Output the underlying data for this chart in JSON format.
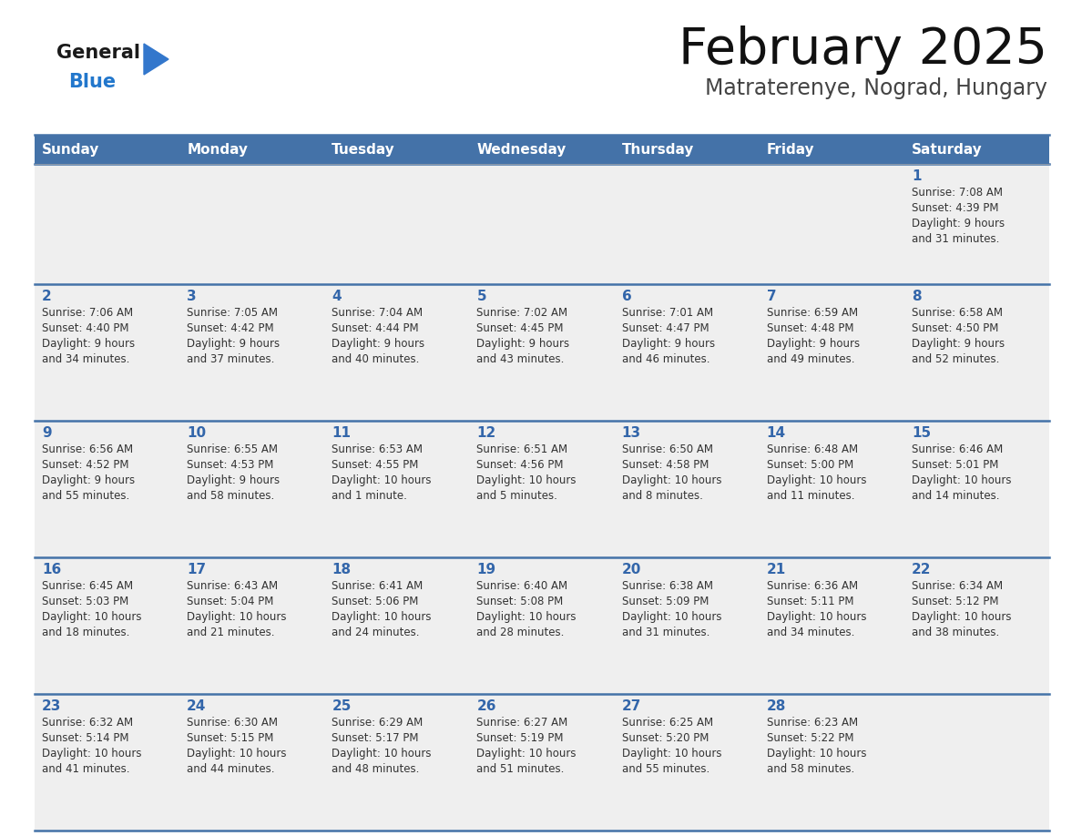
{
  "title": "February 2025",
  "subtitle": "Matraterenye, Nograd, Hungary",
  "days_of_week": [
    "Sunday",
    "Monday",
    "Tuesday",
    "Wednesday",
    "Thursday",
    "Friday",
    "Saturday"
  ],
  "header_bg": "#4472A8",
  "header_text": "#FFFFFF",
  "cell_bg_odd": "#EFEFEF",
  "cell_bg_even": "#FAFAFA",
  "day_number_color": "#3366AA",
  "info_text_color": "#333333",
  "border_color": "#4472A8",
  "logo_general_color": "#1a1a1a",
  "logo_blue_color": "#2277CC",
  "calendar_data": [
    [
      {
        "day": null,
        "info": ""
      },
      {
        "day": null,
        "info": ""
      },
      {
        "day": null,
        "info": ""
      },
      {
        "day": null,
        "info": ""
      },
      {
        "day": null,
        "info": ""
      },
      {
        "day": null,
        "info": ""
      },
      {
        "day": 1,
        "info": "Sunrise: 7:08 AM\nSunset: 4:39 PM\nDaylight: 9 hours\nand 31 minutes."
      }
    ],
    [
      {
        "day": 2,
        "info": "Sunrise: 7:06 AM\nSunset: 4:40 PM\nDaylight: 9 hours\nand 34 minutes."
      },
      {
        "day": 3,
        "info": "Sunrise: 7:05 AM\nSunset: 4:42 PM\nDaylight: 9 hours\nand 37 minutes."
      },
      {
        "day": 4,
        "info": "Sunrise: 7:04 AM\nSunset: 4:44 PM\nDaylight: 9 hours\nand 40 minutes."
      },
      {
        "day": 5,
        "info": "Sunrise: 7:02 AM\nSunset: 4:45 PM\nDaylight: 9 hours\nand 43 minutes."
      },
      {
        "day": 6,
        "info": "Sunrise: 7:01 AM\nSunset: 4:47 PM\nDaylight: 9 hours\nand 46 minutes."
      },
      {
        "day": 7,
        "info": "Sunrise: 6:59 AM\nSunset: 4:48 PM\nDaylight: 9 hours\nand 49 minutes."
      },
      {
        "day": 8,
        "info": "Sunrise: 6:58 AM\nSunset: 4:50 PM\nDaylight: 9 hours\nand 52 minutes."
      }
    ],
    [
      {
        "day": 9,
        "info": "Sunrise: 6:56 AM\nSunset: 4:52 PM\nDaylight: 9 hours\nand 55 minutes."
      },
      {
        "day": 10,
        "info": "Sunrise: 6:55 AM\nSunset: 4:53 PM\nDaylight: 9 hours\nand 58 minutes."
      },
      {
        "day": 11,
        "info": "Sunrise: 6:53 AM\nSunset: 4:55 PM\nDaylight: 10 hours\nand 1 minute."
      },
      {
        "day": 12,
        "info": "Sunrise: 6:51 AM\nSunset: 4:56 PM\nDaylight: 10 hours\nand 5 minutes."
      },
      {
        "day": 13,
        "info": "Sunrise: 6:50 AM\nSunset: 4:58 PM\nDaylight: 10 hours\nand 8 minutes."
      },
      {
        "day": 14,
        "info": "Sunrise: 6:48 AM\nSunset: 5:00 PM\nDaylight: 10 hours\nand 11 minutes."
      },
      {
        "day": 15,
        "info": "Sunrise: 6:46 AM\nSunset: 5:01 PM\nDaylight: 10 hours\nand 14 minutes."
      }
    ],
    [
      {
        "day": 16,
        "info": "Sunrise: 6:45 AM\nSunset: 5:03 PM\nDaylight: 10 hours\nand 18 minutes."
      },
      {
        "day": 17,
        "info": "Sunrise: 6:43 AM\nSunset: 5:04 PM\nDaylight: 10 hours\nand 21 minutes."
      },
      {
        "day": 18,
        "info": "Sunrise: 6:41 AM\nSunset: 5:06 PM\nDaylight: 10 hours\nand 24 minutes."
      },
      {
        "day": 19,
        "info": "Sunrise: 6:40 AM\nSunset: 5:08 PM\nDaylight: 10 hours\nand 28 minutes."
      },
      {
        "day": 20,
        "info": "Sunrise: 6:38 AM\nSunset: 5:09 PM\nDaylight: 10 hours\nand 31 minutes."
      },
      {
        "day": 21,
        "info": "Sunrise: 6:36 AM\nSunset: 5:11 PM\nDaylight: 10 hours\nand 34 minutes."
      },
      {
        "day": 22,
        "info": "Sunrise: 6:34 AM\nSunset: 5:12 PM\nDaylight: 10 hours\nand 38 minutes."
      }
    ],
    [
      {
        "day": 23,
        "info": "Sunrise: 6:32 AM\nSunset: 5:14 PM\nDaylight: 10 hours\nand 41 minutes."
      },
      {
        "day": 24,
        "info": "Sunrise: 6:30 AM\nSunset: 5:15 PM\nDaylight: 10 hours\nand 44 minutes."
      },
      {
        "day": 25,
        "info": "Sunrise: 6:29 AM\nSunset: 5:17 PM\nDaylight: 10 hours\nand 48 minutes."
      },
      {
        "day": 26,
        "info": "Sunrise: 6:27 AM\nSunset: 5:19 PM\nDaylight: 10 hours\nand 51 minutes."
      },
      {
        "day": 27,
        "info": "Sunrise: 6:25 AM\nSunset: 5:20 PM\nDaylight: 10 hours\nand 55 minutes."
      },
      {
        "day": 28,
        "info": "Sunrise: 6:23 AM\nSunset: 5:22 PM\nDaylight: 10 hours\nand 58 minutes."
      },
      {
        "day": null,
        "info": ""
      }
    ]
  ]
}
